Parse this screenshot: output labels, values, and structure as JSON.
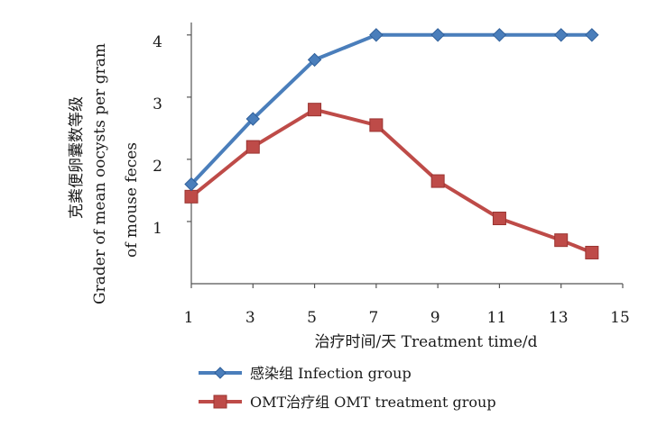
{
  "chart_data": {
    "type": "line",
    "title": "",
    "xlabel": "治疗时间/天 Treatment time/d",
    "ylabel_lines": [
      "克粪便卵囊数等级",
      "Grader of mean oocysts per gram",
      "of mouse feces"
    ],
    "x_ticks": [
      1,
      3,
      5,
      7,
      9,
      11,
      13,
      15
    ],
    "y_ticks": [
      1,
      2,
      3,
      4
    ],
    "xlim": [
      1,
      15
    ],
    "ylim": [
      0,
      4.2
    ],
    "grid": false,
    "legend_position": "bottom",
    "series": [
      {
        "name": "感染组 Infection group",
        "color": "#4a7ebb",
        "marker": "diamond",
        "x": [
          1,
          3,
          5,
          7,
          9,
          11,
          13,
          14
        ],
        "y": [
          1.6,
          2.65,
          3.6,
          4.0,
          4.0,
          4.0,
          4.0,
          4.0
        ]
      },
      {
        "name": "OMT治疗组 OMT treatment group",
        "color": "#be4b48",
        "marker": "square",
        "x": [
          1,
          3,
          5,
          7,
          9,
          11,
          13,
          14
        ],
        "y": [
          1.4,
          2.2,
          2.8,
          2.55,
          1.65,
          1.05,
          0.7,
          0.5
        ]
      }
    ]
  }
}
